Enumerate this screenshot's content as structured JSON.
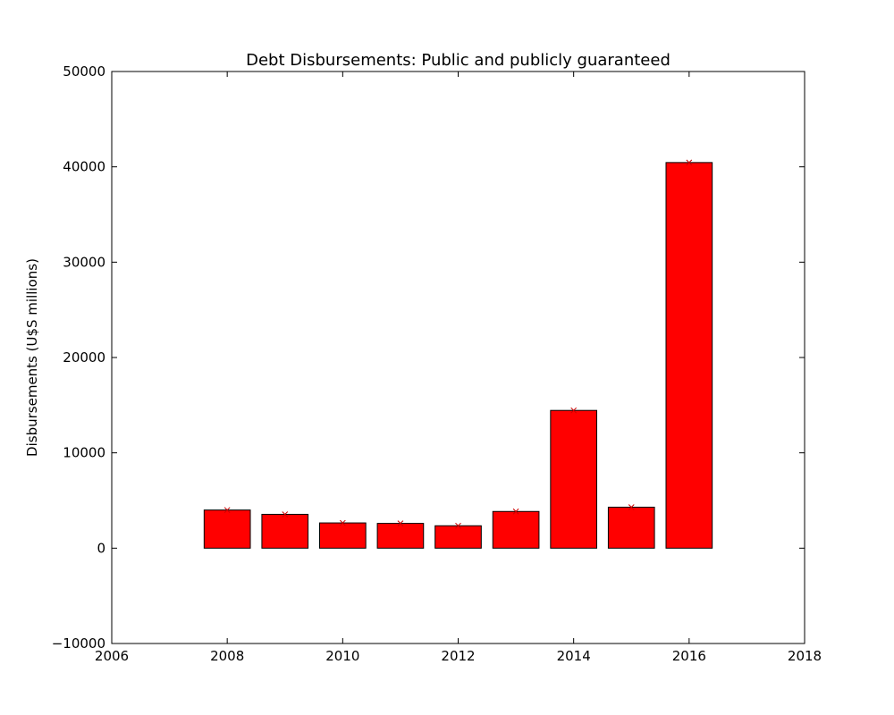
{
  "chart_data": {
    "type": "bar",
    "title": "Debt Disbursements: Public and publicly guaranteed",
    "xlabel": "",
    "ylabel": "Disbursements (U$S millions)",
    "x": [
      2008,
      2009,
      2010,
      2011,
      2012,
      2013,
      2014,
      2015,
      2016
    ],
    "values": [
      4000,
      3550,
      2650,
      2600,
      2350,
      3850,
      14450,
      4300,
      40450
    ],
    "bar_width": 0.8,
    "xlim": [
      2006,
      2018
    ],
    "ylim": [
      -10000,
      50000
    ],
    "xticks": [
      2006,
      2008,
      2010,
      2012,
      2014,
      2016,
      2018
    ],
    "xtick_labels": [
      "2006",
      "2008",
      "2010",
      "2012",
      "2014",
      "2016",
      "2018"
    ],
    "yticks": [
      -10000,
      0,
      10000,
      20000,
      30000,
      40000,
      50000
    ],
    "ytick_labels": [
      "−10000",
      "0",
      "10000",
      "20000",
      "30000",
      "40000",
      "50000"
    ],
    "markers": "x",
    "grid": false,
    "bar_color": "#ff0000",
    "marker_color": "#cc0000"
  }
}
